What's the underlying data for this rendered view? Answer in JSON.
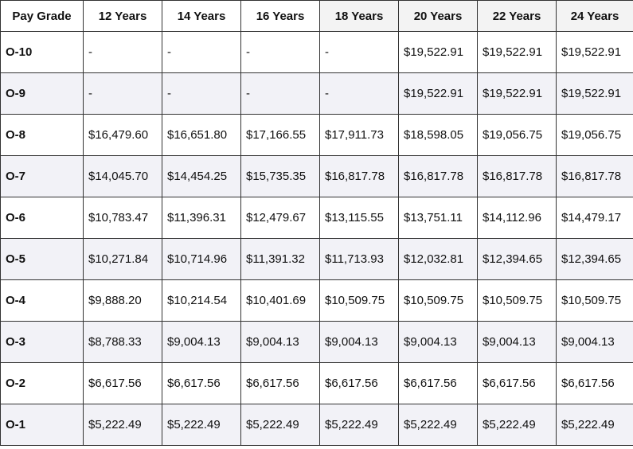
{
  "table": {
    "header": [
      "Pay Grade",
      "12 Years",
      "14 Years",
      "16 Years",
      "18 Years",
      "20 Years",
      "22 Years",
      "24 Years"
    ],
    "rows": [
      [
        "O-10",
        "-",
        "-",
        "-",
        "-",
        "$19,522.91",
        "$19,522.91",
        "$19,522.91"
      ],
      [
        "O-9",
        "-",
        "-",
        "-",
        "-",
        "$19,522.91",
        "$19,522.91",
        "$19,522.91"
      ],
      [
        "O-8",
        "$16,479.60",
        "$16,651.80",
        "$17,166.55",
        "$17,911.73",
        "$18,598.05",
        "$19,056.75",
        "$19,056.75"
      ],
      [
        "O-7",
        "$14,045.70",
        "$14,454.25",
        "$15,735.35",
        "$16,817.78",
        "$16,817.78",
        "$16,817.78",
        "$16,817.78"
      ],
      [
        "O-6",
        "$10,783.47",
        "$11,396.31",
        "$12,479.67",
        "$13,115.55",
        "$13,751.11",
        "$14,112.96",
        "$14,479.17"
      ],
      [
        "O-5",
        "$10,271.84",
        "$10,714.96",
        "$11,391.32",
        "$11,713.93",
        "$12,032.81",
        "$12,394.65",
        "$12,394.65"
      ],
      [
        "O-4",
        "$9,888.20",
        "$10,214.54",
        "$10,401.69",
        "$10,509.75",
        "$10,509.75",
        "$10,509.75",
        "$10,509.75"
      ],
      [
        "O-3",
        "$8,788.33",
        "$9,004.13",
        "$9,004.13",
        "$9,004.13",
        "$9,004.13",
        "$9,004.13",
        "$9,004.13"
      ],
      [
        "O-2",
        "$6,617.56",
        "$6,617.56",
        "$6,617.56",
        "$6,617.56",
        "$6,617.56",
        "$6,617.56",
        "$6,617.56"
      ],
      [
        "O-1",
        "$5,222.49",
        "$5,222.49",
        "$5,222.49",
        "$5,222.49",
        "$5,222.49",
        "$5,222.49",
        "$5,222.49"
      ]
    ]
  }
}
